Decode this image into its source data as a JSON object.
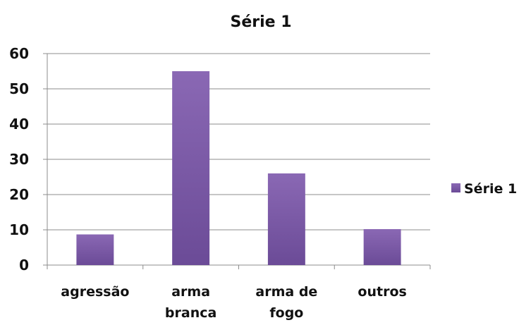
{
  "chart_data": {
    "type": "bar",
    "title": "Série 1",
    "categories": [
      [
        "agressão"
      ],
      [
        "arma",
        "branca"
      ],
      [
        "arma de",
        "fogo"
      ],
      [
        "outros"
      ]
    ],
    "series": [
      {
        "name": "Série 1",
        "values": [
          8.7,
          55,
          26,
          10.2
        ],
        "color": "#7b5aa6"
      }
    ],
    "ylim": [
      0,
      60
    ],
    "yticks": [
      0,
      10,
      20,
      30,
      40,
      50,
      60
    ],
    "grid": true,
    "legend": "right",
    "xlabel": "",
    "ylabel": ""
  }
}
